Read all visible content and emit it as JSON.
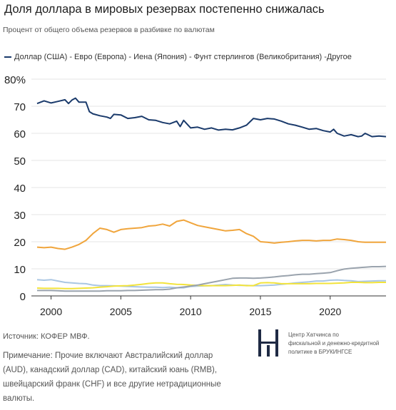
{
  "header": {
    "title": "Доля доллара в мировых резервах постепенно снижалась",
    "subtitle": "Процент от общего объема резервов в разбивке по валютам",
    "legend_text": "Доллар (США) - Евро (Европа) - Иена (Япония) - Фунт стерлингов (Великобритания) -Другое"
  },
  "footer": {
    "source": "Источник: КОФЕР МВФ.",
    "note": "Примечание: Прочие включают Австралийский доллар (AUD), канадский доллар (CAD), китайский юань (RMB), швейцарский франк (CHF) и все другие нетрадиционные валюты.",
    "brand_text": "Центр Хатчинса по\nфискальной и денежно-кредитной\nполитике в БРУКИНГСЕ"
  },
  "chart_data": {
    "type": "line",
    "xlim": [
      1999,
      2024
    ],
    "ylim": [
      0,
      80
    ],
    "x_ticks": [
      2000,
      2005,
      2010,
      2015,
      2020
    ],
    "y_ticks": [
      0,
      10,
      20,
      30,
      40,
      50,
      60,
      70,
      80
    ],
    "y_tick_labels": [
      "0",
      "10",
      "20",
      "30",
      "40",
      "50",
      "60",
      "70",
      "80%"
    ],
    "grid": "horizontal",
    "series": [
      {
        "name": "Доллар (США)",
        "color": "#1a3a6b",
        "points": [
          [
            1999.0,
            71.0
          ],
          [
            1999.5,
            72.0
          ],
          [
            2000.0,
            71.2
          ],
          [
            2000.5,
            71.8
          ],
          [
            2001.0,
            72.4
          ],
          [
            2001.25,
            71.0
          ],
          [
            2001.5,
            72.3
          ],
          [
            2001.75,
            73.0
          ],
          [
            2002.0,
            71.5
          ],
          [
            2002.5,
            71.5
          ],
          [
            2002.75,
            68.0
          ],
          [
            2003.0,
            67.2
          ],
          [
            2003.5,
            66.5
          ],
          [
            2004.0,
            66.0
          ],
          [
            2004.25,
            65.5
          ],
          [
            2004.5,
            67.0
          ],
          [
            2005.0,
            66.8
          ],
          [
            2005.5,
            65.5
          ],
          [
            2006.0,
            65.8
          ],
          [
            2006.5,
            66.3
          ],
          [
            2007.0,
            65.0
          ],
          [
            2007.5,
            64.8
          ],
          [
            2008.0,
            64.0
          ],
          [
            2008.5,
            63.5
          ],
          [
            2009.0,
            64.5
          ],
          [
            2009.25,
            62.5
          ],
          [
            2009.5,
            64.8
          ],
          [
            2010.0,
            62.0
          ],
          [
            2010.5,
            62.3
          ],
          [
            2011.0,
            61.5
          ],
          [
            2011.5,
            62.0
          ],
          [
            2012.0,
            61.2
          ],
          [
            2012.5,
            61.5
          ],
          [
            2013.0,
            61.3
          ],
          [
            2013.5,
            62.0
          ],
          [
            2014.0,
            63.0
          ],
          [
            2014.5,
            65.5
          ],
          [
            2015.0,
            65.0
          ],
          [
            2015.5,
            65.5
          ],
          [
            2016.0,
            65.3
          ],
          [
            2016.5,
            64.5
          ],
          [
            2017.0,
            63.5
          ],
          [
            2017.5,
            63.0
          ],
          [
            2018.0,
            62.3
          ],
          [
            2018.5,
            61.5
          ],
          [
            2019.0,
            61.8
          ],
          [
            2019.5,
            61.0
          ],
          [
            2020.0,
            60.5
          ],
          [
            2020.25,
            61.5
          ],
          [
            2020.5,
            60.0
          ],
          [
            2021.0,
            59.0
          ],
          [
            2021.5,
            59.5
          ],
          [
            2022.0,
            58.8
          ],
          [
            2022.25,
            59.0
          ],
          [
            2022.5,
            60.0
          ],
          [
            2023.0,
            58.8
          ],
          [
            2023.5,
            59.0
          ],
          [
            2024.0,
            58.8
          ]
        ]
      },
      {
        "name": "Евро (Европа)",
        "color": "#f0a53c",
        "points": [
          [
            1999.0,
            18.0
          ],
          [
            1999.5,
            17.8
          ],
          [
            2000.0,
            18.0
          ],
          [
            2000.5,
            17.5
          ],
          [
            2001.0,
            17.2
          ],
          [
            2001.5,
            18.0
          ],
          [
            2002.0,
            19.0
          ],
          [
            2002.5,
            20.5
          ],
          [
            2003.0,
            23.0
          ],
          [
            2003.5,
            25.0
          ],
          [
            2004.0,
            24.5
          ],
          [
            2004.5,
            23.5
          ],
          [
            2005.0,
            24.5
          ],
          [
            2005.5,
            24.8
          ],
          [
            2006.0,
            25.0
          ],
          [
            2006.5,
            25.2
          ],
          [
            2007.0,
            25.8
          ],
          [
            2007.5,
            26.0
          ],
          [
            2008.0,
            26.5
          ],
          [
            2008.5,
            25.8
          ],
          [
            2009.0,
            27.5
          ],
          [
            2009.5,
            28.0
          ],
          [
            2010.0,
            27.0
          ],
          [
            2010.5,
            26.0
          ],
          [
            2011.0,
            25.5
          ],
          [
            2011.5,
            25.0
          ],
          [
            2012.0,
            24.5
          ],
          [
            2012.5,
            24.0
          ],
          [
            2013.0,
            24.2
          ],
          [
            2013.5,
            24.5
          ],
          [
            2014.0,
            23.0
          ],
          [
            2014.5,
            22.0
          ],
          [
            2015.0,
            20.0
          ],
          [
            2015.5,
            19.8
          ],
          [
            2016.0,
            19.5
          ],
          [
            2016.5,
            19.8
          ],
          [
            2017.0,
            20.0
          ],
          [
            2017.5,
            20.3
          ],
          [
            2018.0,
            20.5
          ],
          [
            2018.5,
            20.5
          ],
          [
            2019.0,
            20.3
          ],
          [
            2019.5,
            20.5
          ],
          [
            2020.0,
            20.5
          ],
          [
            2020.5,
            21.0
          ],
          [
            2021.0,
            20.8
          ],
          [
            2021.5,
            20.5
          ],
          [
            2022.0,
            20.0
          ],
          [
            2022.5,
            19.8
          ],
          [
            2023.0,
            19.8
          ],
          [
            2023.5,
            19.8
          ],
          [
            2024.0,
            19.8
          ]
        ]
      },
      {
        "name": "Иена (Япония)",
        "color": "#a9c6e3",
        "points": [
          [
            1999.0,
            6.0
          ],
          [
            1999.5,
            5.8
          ],
          [
            2000.0,
            6.0
          ],
          [
            2000.5,
            5.5
          ],
          [
            2001.0,
            5.0
          ],
          [
            2001.5,
            4.8
          ],
          [
            2002.0,
            4.6
          ],
          [
            2002.5,
            4.5
          ],
          [
            2003.0,
            4.0
          ],
          [
            2003.5,
            3.8
          ],
          [
            2004.0,
            3.8
          ],
          [
            2004.5,
            3.7
          ],
          [
            2005.0,
            3.6
          ],
          [
            2005.5,
            3.5
          ],
          [
            2006.0,
            3.4
          ],
          [
            2006.5,
            3.3
          ],
          [
            2007.0,
            3.2
          ],
          [
            2007.5,
            3.2
          ],
          [
            2008.0,
            3.1
          ],
          [
            2008.5,
            3.2
          ],
          [
            2009.0,
            3.0
          ],
          [
            2009.5,
            3.0
          ],
          [
            2010.0,
            3.5
          ],
          [
            2010.5,
            3.6
          ],
          [
            2011.0,
            3.7
          ],
          [
            2011.5,
            3.8
          ],
          [
            2012.0,
            4.0
          ],
          [
            2012.5,
            4.2
          ],
          [
            2013.0,
            4.0
          ],
          [
            2013.5,
            3.9
          ],
          [
            2014.0,
            3.9
          ],
          [
            2014.5,
            3.8
          ],
          [
            2015.0,
            3.8
          ],
          [
            2015.5,
            3.9
          ],
          [
            2016.0,
            4.0
          ],
          [
            2016.5,
            4.3
          ],
          [
            2017.0,
            4.5
          ],
          [
            2017.5,
            4.8
          ],
          [
            2018.0,
            5.0
          ],
          [
            2018.5,
            5.2
          ],
          [
            2019.0,
            5.5
          ],
          [
            2019.5,
            5.5
          ],
          [
            2020.0,
            5.8
          ],
          [
            2020.5,
            5.9
          ],
          [
            2021.0,
            5.7
          ],
          [
            2021.5,
            5.6
          ],
          [
            2022.0,
            5.3
          ],
          [
            2022.5,
            5.4
          ],
          [
            2023.0,
            5.5
          ],
          [
            2023.5,
            5.6
          ],
          [
            2024.0,
            5.6
          ]
        ]
      },
      {
        "name": "Фунт стерлингов (Великобритания)",
        "color": "#f2e33b",
        "points": [
          [
            1999.0,
            2.9
          ],
          [
            1999.5,
            2.8
          ],
          [
            2000.0,
            2.8
          ],
          [
            2000.5,
            2.8
          ],
          [
            2001.0,
            2.7
          ],
          [
            2001.5,
            2.7
          ],
          [
            2002.0,
            2.8
          ],
          [
            2002.5,
            2.9
          ],
          [
            2003.0,
            3.0
          ],
          [
            2003.5,
            3.2
          ],
          [
            2004.0,
            3.4
          ],
          [
            2004.5,
            3.6
          ],
          [
            2005.0,
            3.7
          ],
          [
            2005.5,
            3.8
          ],
          [
            2006.0,
            4.0
          ],
          [
            2006.5,
            4.3
          ],
          [
            2007.0,
            4.6
          ],
          [
            2007.5,
            4.8
          ],
          [
            2008.0,
            4.8
          ],
          [
            2008.5,
            4.5
          ],
          [
            2009.0,
            4.3
          ],
          [
            2009.5,
            4.2
          ],
          [
            2010.0,
            4.0
          ],
          [
            2010.5,
            3.9
          ],
          [
            2011.0,
            3.8
          ],
          [
            2011.5,
            3.8
          ],
          [
            2012.0,
            3.8
          ],
          [
            2012.5,
            3.8
          ],
          [
            2013.0,
            3.9
          ],
          [
            2013.5,
            4.0
          ],
          [
            2014.0,
            3.8
          ],
          [
            2014.5,
            3.8
          ],
          [
            2015.0,
            4.8
          ],
          [
            2015.5,
            4.9
          ],
          [
            2016.0,
            4.8
          ],
          [
            2016.5,
            4.5
          ],
          [
            2017.0,
            4.5
          ],
          [
            2017.5,
            4.5
          ],
          [
            2018.0,
            4.5
          ],
          [
            2018.5,
            4.5
          ],
          [
            2019.0,
            4.6
          ],
          [
            2019.5,
            4.6
          ],
          [
            2020.0,
            4.6
          ],
          [
            2020.5,
            4.7
          ],
          [
            2021.0,
            4.8
          ],
          [
            2021.5,
            5.0
          ],
          [
            2022.0,
            5.0
          ],
          [
            2022.5,
            4.9
          ],
          [
            2023.0,
            4.9
          ],
          [
            2023.5,
            5.0
          ],
          [
            2024.0,
            5.0
          ]
        ]
      },
      {
        "name": "Другое",
        "color": "#9aa3ad",
        "points": [
          [
            1999.0,
            2.0
          ],
          [
            1999.5,
            2.0
          ],
          [
            2000.0,
            2.0
          ],
          [
            2000.5,
            1.9
          ],
          [
            2001.0,
            1.8
          ],
          [
            2001.5,
            1.8
          ],
          [
            2002.0,
            1.8
          ],
          [
            2002.5,
            1.8
          ],
          [
            2003.0,
            1.8
          ],
          [
            2003.5,
            1.8
          ],
          [
            2004.0,
            1.9
          ],
          [
            2004.5,
            1.9
          ],
          [
            2005.0,
            1.9
          ],
          [
            2005.5,
            2.0
          ],
          [
            2006.0,
            2.0
          ],
          [
            2006.5,
            2.1
          ],
          [
            2007.0,
            2.2
          ],
          [
            2007.5,
            2.3
          ],
          [
            2008.0,
            2.3
          ],
          [
            2008.5,
            2.5
          ],
          [
            2009.0,
            3.0
          ],
          [
            2009.5,
            3.3
          ],
          [
            2010.0,
            3.6
          ],
          [
            2010.5,
            4.0
          ],
          [
            2011.0,
            4.5
          ],
          [
            2011.5,
            5.0
          ],
          [
            2012.0,
            5.5
          ],
          [
            2012.5,
            6.0
          ],
          [
            2013.0,
            6.5
          ],
          [
            2013.5,
            6.6
          ],
          [
            2014.0,
            6.6
          ],
          [
            2014.5,
            6.5
          ],
          [
            2015.0,
            6.6
          ],
          [
            2015.5,
            6.8
          ],
          [
            2016.0,
            7.0
          ],
          [
            2016.5,
            7.3
          ],
          [
            2017.0,
            7.5
          ],
          [
            2017.5,
            7.8
          ],
          [
            2018.0,
            8.0
          ],
          [
            2018.5,
            8.0
          ],
          [
            2019.0,
            8.2
          ],
          [
            2019.5,
            8.4
          ],
          [
            2020.0,
            8.6
          ],
          [
            2020.5,
            9.3
          ],
          [
            2021.0,
            9.9
          ],
          [
            2021.5,
            10.2
          ],
          [
            2022.0,
            10.4
          ],
          [
            2022.5,
            10.6
          ],
          [
            2023.0,
            10.8
          ],
          [
            2023.5,
            10.8
          ],
          [
            2024.0,
            10.9
          ]
        ]
      }
    ]
  }
}
